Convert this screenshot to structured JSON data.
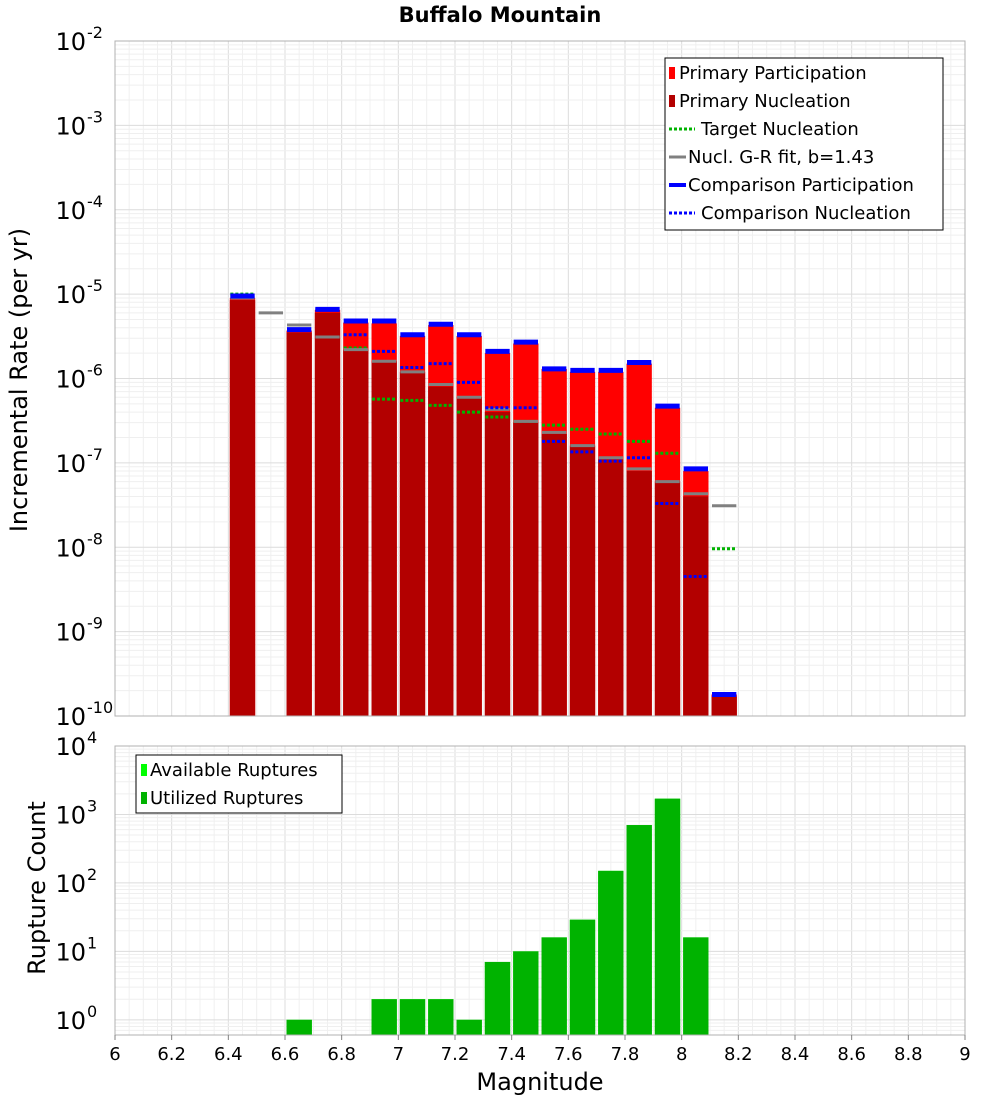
{
  "chart_data": [
    {
      "type": "bar",
      "title": "Buffalo Mountain",
      "xlabel": "",
      "ylabel": "Incremental Rate (per yr)",
      "xlim": [
        6,
        9
      ],
      "ylim": [
        1e-10,
        0.01
      ],
      "yscale": "log",
      "grid": true,
      "legend_position": "top-right",
      "x_ticks": [
        "6",
        "6.2",
        "6.4",
        "6.6",
        "6.8",
        "7",
        "7.2",
        "7.4",
        "7.6",
        "7.8",
        "8",
        "8.2",
        "8.4",
        "8.6",
        "8.8",
        "9"
      ],
      "y_tick_exponents": [
        "-10",
        "-9",
        "-8",
        "-7",
        "-6",
        "-5",
        "-4",
        "-3",
        "-2"
      ],
      "bin_centers": [
        6.45,
        6.55,
        6.65,
        6.75,
        6.85,
        6.95,
        7.05,
        7.15,
        7.25,
        7.35,
        7.45,
        7.55,
        7.65,
        7.75,
        7.85,
        7.95,
        8.05,
        8.15
      ],
      "series": [
        {
          "name": "Primary Participation",
          "style": "bar",
          "color": "#ff0000",
          "values": [
            9e-06,
            null,
            3.7e-06,
            6.5e-06,
            4.6e-06,
            4.5e-06,
            3.2e-06,
            4.3e-06,
            3.2e-06,
            2e-06,
            2.6e-06,
            1.3e-06,
            1.2e-06,
            1.2e-06,
            1.5e-06,
            4.5e-07,
            8e-08,
            1.8e-10
          ]
        },
        {
          "name": "Primary Nucleation",
          "style": "bar",
          "color": "#b30000",
          "values": [
            8.5e-06,
            null,
            3.5e-06,
            6e-06,
            2.2e-06,
            1.6e-06,
            1.2e-06,
            8e-07,
            6e-07,
            4e-07,
            3e-07,
            2.2e-07,
            1.6e-07,
            1.1e-07,
            8e-08,
            6e-08,
            4e-08,
            1.7e-10
          ]
        },
        {
          "name": "Target Nucleation",
          "style": "dotted",
          "color": "#00b300",
          "values": [
            1e-05,
            null,
            null,
            null,
            2.3e-06,
            5.7e-07,
            5.5e-07,
            4.8e-07,
            4e-07,
            3.5e-07,
            3.1e-07,
            2.8e-07,
            2.5e-07,
            2.2e-07,
            1.8e-07,
            1.3e-07,
            null,
            9.6e-09
          ]
        },
        {
          "name": "Nucl. G-R fit, b=1.43",
          "style": "solid",
          "color": "#808080",
          "values": [
            9e-06,
            6e-06,
            4.3e-06,
            3.1e-06,
            2.2e-06,
            1.6e-06,
            1.2e-06,
            8.5e-07,
            6e-07,
            4.3e-07,
            3.1e-07,
            2.3e-07,
            1.6e-07,
            1.15e-07,
            8.5e-08,
            6e-08,
            4.3e-08,
            3.1e-08
          ]
        },
        {
          "name": "Comparison Participation",
          "style": "solid",
          "color": "#0000ff",
          "values": [
            9.5e-06,
            null,
            3.8e-06,
            6.6e-06,
            4.8e-06,
            4.8e-06,
            3.3e-06,
            4.4e-06,
            3.3e-06,
            2.1e-06,
            2.7e-06,
            1.3e-06,
            1.25e-06,
            1.25e-06,
            1.55e-06,
            4.7e-07,
            8.5e-08,
            1.8e-10
          ]
        },
        {
          "name": "Comparison Nucleation",
          "style": "dotted",
          "color": "#0000ff",
          "values": [
            null,
            null,
            null,
            6.5e-06,
            3.3e-06,
            2.1e-06,
            1.35e-06,
            1.5e-06,
            9e-07,
            4.5e-07,
            4.5e-07,
            1.8e-07,
            1.35e-07,
            1.05e-07,
            1.15e-07,
            3.3e-08,
            4.5e-09,
            null
          ]
        }
      ]
    },
    {
      "type": "bar",
      "title": "",
      "xlabel": "Magnitude",
      "ylabel": "Rupture Count",
      "xlim": [
        6,
        9
      ],
      "ylim": [
        0.6,
        10000.0
      ],
      "yscale": "log",
      "grid": true,
      "legend_position": "top-left",
      "x_ticks": [
        "6",
        "6.2",
        "6.4",
        "6.6",
        "6.8",
        "7",
        "7.2",
        "7.4",
        "7.6",
        "7.8",
        "8",
        "8.2",
        "8.4",
        "8.6",
        "8.8",
        "9"
      ],
      "y_tick_exponents": [
        "0",
        "1",
        "2",
        "3",
        "4"
      ],
      "bin_centers": [
        6.45,
        6.55,
        6.65,
        6.75,
        6.85,
        6.95,
        7.05,
        7.15,
        7.25,
        7.35,
        7.45,
        7.55,
        7.65,
        7.75,
        7.85,
        7.95,
        8.05,
        8.15
      ],
      "series": [
        {
          "name": "Available Ruptures",
          "style": "bar",
          "color": "#00ff00",
          "values": [
            null,
            null,
            1,
            null,
            null,
            2,
            2,
            2,
            1,
            7,
            10,
            16,
            29,
            150,
            700,
            1700,
            16,
            null
          ]
        },
        {
          "name": "Utilized Ruptures",
          "style": "bar",
          "color": "#00b300",
          "values": [
            null,
            null,
            1,
            null,
            null,
            2,
            2,
            2,
            1,
            7,
            10,
            16,
            29,
            150,
            700,
            1700,
            16,
            null
          ]
        }
      ]
    }
  ]
}
